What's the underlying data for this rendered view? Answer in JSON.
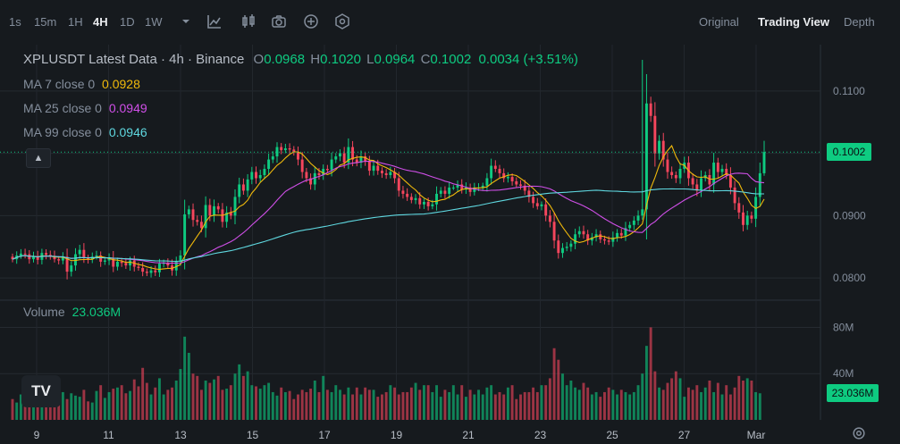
{
  "toolbar": {
    "timeframes": [
      "1s",
      "15m",
      "1H",
      "4H",
      "1D",
      "1W"
    ],
    "active_timeframe": "4H",
    "views": [
      "Original",
      "Trading View",
      "Depth"
    ],
    "active_view": "Trading View"
  },
  "legend": {
    "title": "XPLUSDT Latest Data · 4h · Binance",
    "open_label": "O",
    "open": "0.0968",
    "high_label": "H",
    "high": "0.1020",
    "low_label": "L",
    "low": "0.0964",
    "close_label": "C",
    "close": "0.1002",
    "change": "0.0034 (+3.51%)",
    "ma7_label": "MA 7 close 0",
    "ma7": "0.0928",
    "ma25_label": "MA 25 close 0",
    "ma25": "0.0949",
    "ma99_label": "MA 99 close 0",
    "ma99": "0.0946",
    "volume_label": "Volume",
    "volume": "23.036M"
  },
  "colors": {
    "up": "#0ECB81",
    "down": "#F6465D",
    "ma7": "#F0B90B",
    "ma25": "#D04FE8",
    "ma99": "#5FD8E0"
  },
  "chart_data": {
    "type": "candlestick",
    "price_axis": {
      "ticks": [
        0.08,
        0.09,
        0.1,
        0.11
      ],
      "tick_labels": [
        "0.0800",
        "0.0900",
        "",
        "0.1100"
      ],
      "ylim": [
        0.077,
        0.116
      ]
    },
    "current_price": "0.1002",
    "volume_axis": {
      "ticks": [
        40,
        80
      ],
      "tick_labels": [
        "40M",
        "80M"
      ],
      "ylim": [
        0,
        102
      ]
    },
    "current_volume": "23.036M",
    "x_labels": [
      "9",
      "11",
      "13",
      "15",
      "17",
      "19",
      "21",
      "23",
      "25",
      "27",
      "Mar"
    ],
    "closes": [
      0.083,
      0.0836,
      0.0839,
      0.0838,
      0.083,
      0.0835,
      0.0829,
      0.084,
      0.0837,
      0.0835,
      0.083,
      0.0828,
      0.0834,
      0.081,
      0.082,
      0.0838,
      0.0845,
      0.0832,
      0.083,
      0.0834,
      0.0836,
      0.0826,
      0.0828,
      0.0832,
      0.0818,
      0.0826,
      0.0824,
      0.082,
      0.0828,
      0.0818,
      0.0816,
      0.081,
      0.0808,
      0.0812,
      0.0809,
      0.0823,
      0.0824,
      0.082,
      0.0812,
      0.0826,
      0.0836,
      0.0902,
      0.091,
      0.0893,
      0.089,
      0.088,
      0.0917,
      0.09,
      0.0915,
      0.091,
      0.089,
      0.0905,
      0.09,
      0.093,
      0.095,
      0.094,
      0.0958,
      0.097,
      0.096,
      0.0965,
      0.0975,
      0.099,
      0.0995,
      0.101,
      0.1005,
      0.1008,
      0.1006,
      0.1002,
      0.099,
      0.097,
      0.096,
      0.095,
      0.0968,
      0.0965,
      0.0975,
      0.0973,
      0.099,
      0.0995,
      0.1,
      0.0985,
      0.101,
      0.099,
      0.0985,
      0.0995,
      0.0987,
      0.0972,
      0.098,
      0.0972,
      0.0968,
      0.0965,
      0.097,
      0.096,
      0.094,
      0.0935,
      0.093,
      0.0925,
      0.0928,
      0.0918,
      0.0922,
      0.0915,
      0.0918,
      0.0935,
      0.094,
      0.0935,
      0.0945,
      0.0945,
      0.095,
      0.0942,
      0.0945,
      0.0938,
      0.0945,
      0.0945,
      0.0948,
      0.096,
      0.098,
      0.0975,
      0.0968,
      0.096,
      0.0962,
      0.0955,
      0.095,
      0.0948,
      0.094,
      0.093,
      0.092,
      0.0915,
      0.0918,
      0.09,
      0.089,
      0.086,
      0.084,
      0.0848,
      0.085,
      0.0855,
      0.087,
      0.0875,
      0.087,
      0.086,
      0.0865,
      0.087,
      0.0862,
      0.086,
      0.0858,
      0.0865,
      0.0872,
      0.0868,
      0.088,
      0.0885,
      0.0892,
      0.09,
      0.091,
      0.108,
      0.106,
      0.1,
      0.102,
      0.099,
      0.097,
      0.0965,
      0.096,
      0.0975,
      0.0985,
      0.096,
      0.095,
      0.094,
      0.096,
      0.0965,
      0.095,
      0.0985,
      0.097,
      0.0975,
      0.0965,
      0.0945,
      0.092,
      0.0905,
      0.0885,
      0.09,
      0.0895,
      0.093,
      0.0968,
      0.1002
    ],
    "volumes_m": [
      18,
      15,
      22,
      20,
      25,
      19,
      27,
      18,
      24,
      23,
      20,
      16,
      24,
      18,
      23,
      21,
      20,
      26,
      16,
      15,
      25,
      30,
      19,
      24,
      27,
      28,
      30,
      23,
      25,
      35,
      29,
      45,
      32,
      22,
      28,
      36,
      22,
      26,
      28,
      34,
      44,
      72,
      58,
      40,
      38,
      26,
      34,
      32,
      35,
      38,
      26,
      27,
      30,
      40,
      48,
      38,
      42,
      30,
      29,
      27,
      30,
      32,
      24,
      21,
      28,
      24,
      25,
      18,
      22,
      26,
      24,
      27,
      34,
      24,
      38,
      26,
      24,
      30,
      26,
      22,
      28,
      22,
      28,
      22,
      28,
      26,
      26,
      20,
      22,
      24,
      30,
      28,
      22,
      24,
      24,
      28,
      32,
      26,
      30,
      30,
      24,
      30,
      20,
      26,
      24,
      30,
      22,
      30,
      20,
      26,
      22,
      26,
      22,
      28,
      30,
      22,
      24,
      22,
      28,
      30,
      18,
      22,
      24,
      24,
      28,
      24,
      30,
      30,
      36,
      62,
      52,
      40,
      30,
      34,
      28,
      26,
      32,
      28,
      22,
      24,
      20,
      24,
      28,
      26,
      22,
      26,
      24,
      22,
      24,
      30,
      40,
      64,
      80,
      42,
      28,
      26,
      32,
      36,
      42,
      36,
      20,
      28,
      26,
      30,
      24,
      28,
      34,
      24,
      32,
      22,
      30,
      22,
      28,
      38,
      34,
      36,
      34,
      24,
      23
    ]
  }
}
